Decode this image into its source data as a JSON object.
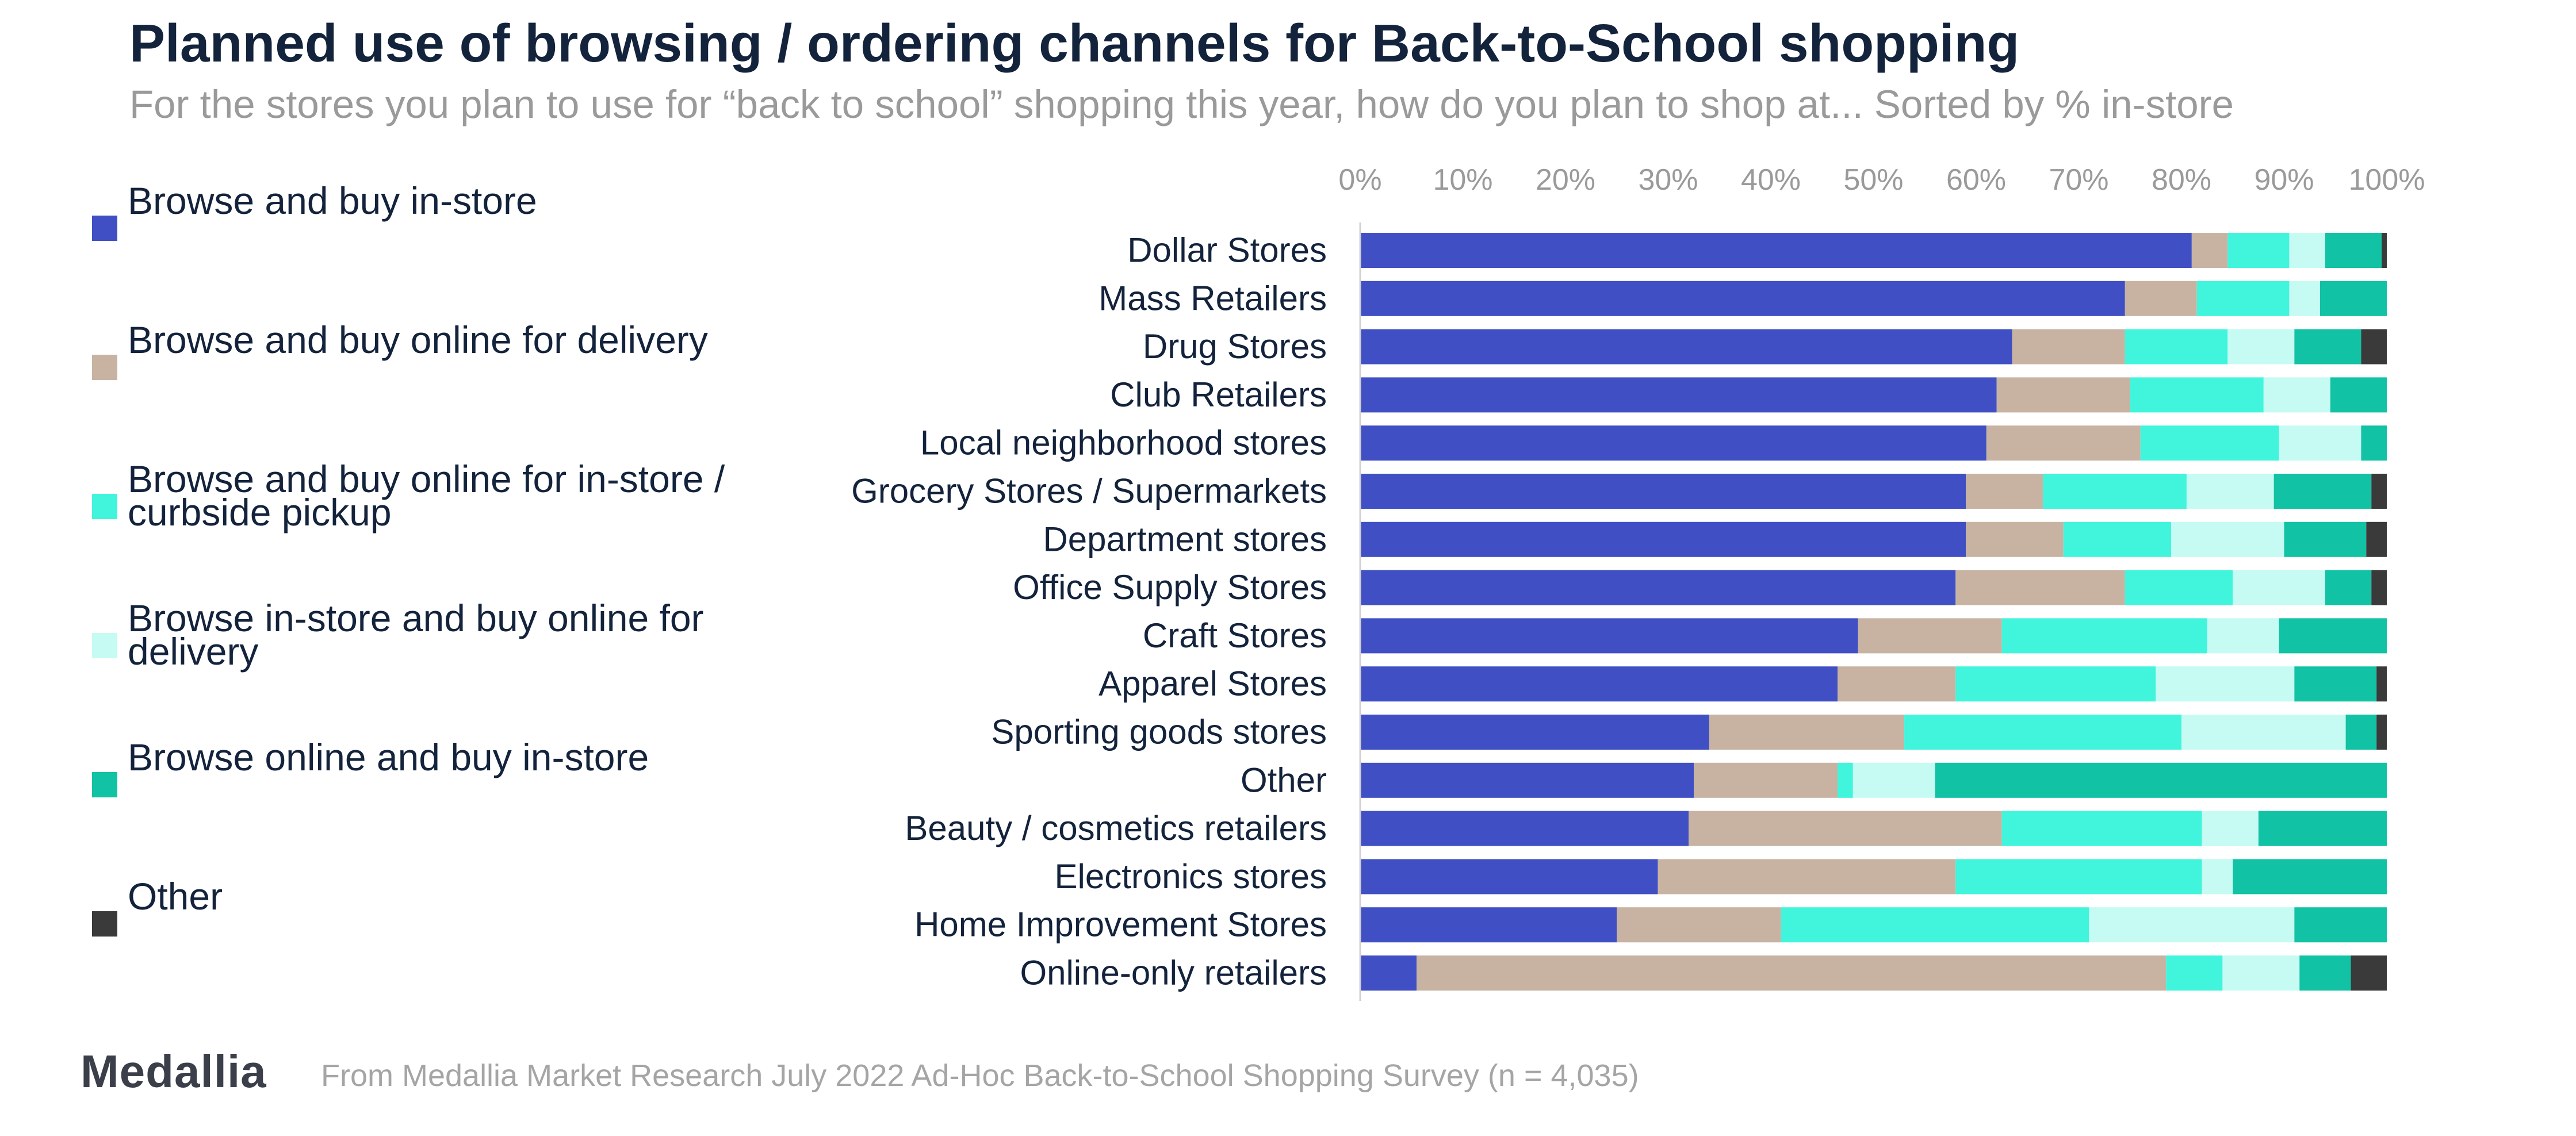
{
  "header": {
    "title": "Planned use of browsing / ordering channels for Back-to-School shopping",
    "subtitle": "For the stores you plan to use for “back to school” shopping this year, how do you plan to shop at... Sorted by % in-store"
  },
  "footer": {
    "logo": "Medallia",
    "source": "From Medallia Market Research July 2022 Ad-Hoc Back-to-School Shopping Survey (n = 4,035)"
  },
  "chart_data": {
    "type": "bar",
    "orientation": "horizontal",
    "stacked": true,
    "title": "Planned use of browsing / ordering channels for Back-to-School shopping",
    "xlabel": "",
    "ylabel": "",
    "xlim": [
      0,
      100
    ],
    "x_ticks": [
      "0%",
      "10%",
      "20%",
      "30%",
      "40%",
      "50%",
      "60%",
      "70%",
      "80%",
      "90%",
      "100%"
    ],
    "x_axis_position": "top",
    "grid": false,
    "legend_position": "left",
    "categories": [
      "Dollar Stores",
      "Mass Retailers",
      "Drug Stores",
      "Club Retailers",
      "Local neighborhood stores",
      "Grocery Stores / Supermarkets",
      "Department stores",
      "Office Supply Stores",
      "Craft Stores",
      "Apparel Stores",
      "Sporting goods stores",
      "Other",
      "Beauty / cosmetics retailers",
      "Electronics stores",
      "Home Improvement Stores",
      "Online-only retailers"
    ],
    "series": [
      {
        "name": "Browse and buy in-store",
        "color": "#4050c4",
        "values": [
          81,
          74.5,
          63.5,
          62,
          61,
          59,
          59,
          58,
          48.5,
          46.5,
          34,
          32.5,
          32,
          29,
          25,
          5.5
        ]
      },
      {
        "name": "Browse and buy online for delivery",
        "color": "#c8b3a2",
        "values": [
          3.5,
          7,
          11,
          13,
          15,
          7.5,
          9.5,
          16.5,
          14,
          11.5,
          19,
          14,
          30.5,
          29,
          16,
          73
        ]
      },
      {
        "name": "Browse and buy online for in-store / curbside pickup",
        "color": "#41f5dc",
        "values": [
          6,
          9,
          10,
          13,
          13.5,
          14,
          10.5,
          10.5,
          20,
          19.5,
          27,
          1.5,
          19.5,
          24,
          30,
          5.5
        ]
      },
      {
        "name": "Browse in-store and buy online for delivery",
        "color": "#c6fbf3",
        "values": [
          3.5,
          3,
          6.5,
          6.5,
          8,
          8.5,
          11,
          9,
          7,
          13.5,
          16,
          8,
          5.5,
          3,
          20,
          7.5
        ]
      },
      {
        "name": "Browse online and buy in-store",
        "color": "#11c2a4",
        "values": [
          5.5,
          6.5,
          6.5,
          5.5,
          2.5,
          9.5,
          8,
          4.5,
          10.5,
          8,
          3,
          44,
          12.5,
          15,
          9,
          5
        ]
      },
      {
        "name": "Other",
        "color": "#3a3a3a",
        "values": [
          0.5,
          0,
          2.5,
          0,
          0,
          1.5,
          2,
          1.5,
          0,
          1,
          1,
          0,
          0,
          0,
          0,
          3.5
        ]
      }
    ]
  }
}
